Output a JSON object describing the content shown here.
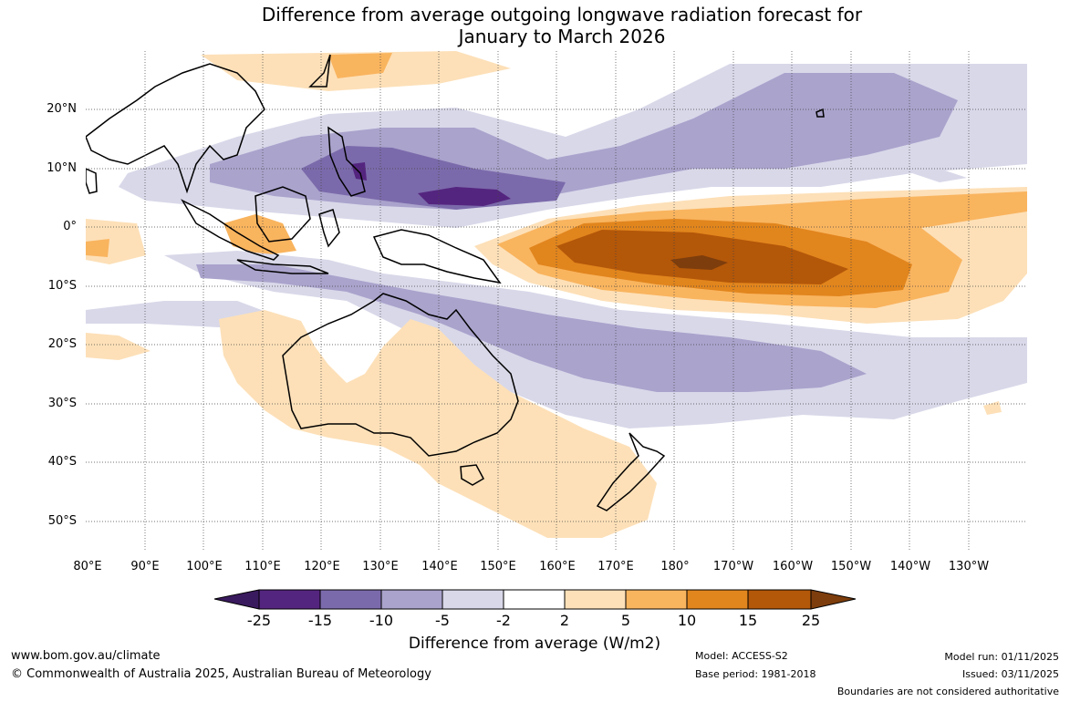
{
  "title_line1": "Difference from average outgoing longwave radiation forecast for",
  "title_line2": "January to March 2026",
  "lat_ticks": [
    "20°N",
    "10°N",
    "0°",
    "10°S",
    "20°S",
    "30°S",
    "40°S",
    "50°S"
  ],
  "lon_ticks": [
    "80°E",
    "90°E",
    "100°E",
    "110°E",
    "120°E",
    "130°E",
    "140°E",
    "150°E",
    "160°E",
    "170°E",
    "180°",
    "170°W",
    "160°W",
    "150°W",
    "140°W",
    "130°W"
  ],
  "colorbar": {
    "labels": [
      "-25",
      "-15",
      "-10",
      "-5",
      "-2",
      "2",
      "5",
      "10",
      "15",
      "25"
    ],
    "colors": [
      "#3a1a5e",
      "#54257f",
      "#7b6aab",
      "#aaa3cc",
      "#d8d8e9",
      "#ffffff",
      "#fde0b8",
      "#f9b45e",
      "#e1851d",
      "#b35709",
      "#7d3d0c"
    ],
    "title": "Difference from average (W/m2)"
  },
  "footer": {
    "website": "www.bom.gov.au/climate",
    "copyright": "© Commonwealth of Australia 2025, Australian Bureau of Meteorology",
    "model": "Model: ACCESS-S2",
    "base_period": "Base period: 1981-2018",
    "model_run": "Model run: 01/11/2025",
    "issued": "Issued: 03/11/2025",
    "disclaimer": "Boundaries are not considered authoritative"
  }
}
